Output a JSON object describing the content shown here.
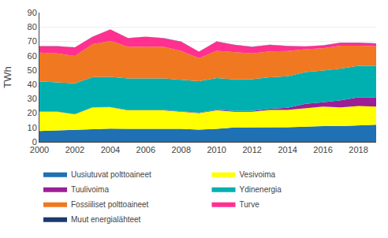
{
  "chart_data": {
    "type": "area",
    "stacked": true,
    "x": [
      2000,
      2001,
      2002,
      2003,
      2004,
      2005,
      2006,
      2007,
      2008,
      2009,
      2010,
      2011,
      2012,
      2013,
      2014,
      2015,
      2016,
      2017,
      2018,
      2019
    ],
    "series": [
      {
        "name": "Uusiutuvat polttoaineet",
        "color": "#2070B4",
        "values": [
          7.5,
          8.0,
          8.2,
          9.0,
          9.2,
          9.0,
          9.0,
          9.0,
          9.0,
          8.5,
          9.0,
          10.0,
          10.0,
          10.2,
          10.2,
          10.5,
          11.0,
          11.0,
          11.5,
          12.0
        ]
      },
      {
        "name": "Vesivoima",
        "color": "#FFFF00",
        "values": [
          13.5,
          13.0,
          11.0,
          15.0,
          15.0,
          13.0,
          13.0,
          13.0,
          12.0,
          11.5,
          13.0,
          11.0,
          11.0,
          12.0,
          12.0,
          13.0,
          13.5,
          13.0,
          13.5,
          12.5
        ]
      },
      {
        "name": "Tuulivoima",
        "color": "#9B1F97",
        "values": [
          0.1,
          0.1,
          0.1,
          0.1,
          0.1,
          0.2,
          0.2,
          0.2,
          0.2,
          0.3,
          0.4,
          0.5,
          0.6,
          0.8,
          1.5,
          3.0,
          3.1,
          5.0,
          6.0,
          6.5
        ]
      },
      {
        "name": "Ydinenergia",
        "color": "#00B0B0",
        "values": [
          21.0,
          20.5,
          21.5,
          21.0,
          21.0,
          22.0,
          22.0,
          22.0,
          22.0,
          22.0,
          22.0,
          22.0,
          22.0,
          22.0,
          22.0,
          22.0,
          22.0,
          22.0,
          22.0,
          22.0
        ]
      },
      {
        "name": "Fossiiliset polttoaineet",
        "color": "#F07820",
        "values": [
          20.0,
          20.0,
          19.0,
          23.0,
          25.0,
          22.0,
          22.0,
          22.0,
          20.0,
          16.0,
          19.0,
          19.0,
          18.0,
          18.0,
          17.5,
          16.0,
          15.5,
          16.0,
          14.0,
          13.5
        ]
      },
      {
        "name": "Turve",
        "color": "#FF3090",
        "values": [
          4.5,
          5.0,
          6.0,
          5.0,
          8.0,
          6.0,
          7.0,
          6.0,
          6.5,
          4.5,
          6.5,
          5.0,
          4.5,
          4.5,
          3.5,
          2.0,
          2.0,
          2.0,
          2.0,
          2.0
        ]
      },
      {
        "name": "Muut energialähteet",
        "color": "#1A3A6A",
        "values": [
          0.1,
          0.1,
          0.1,
          0.1,
          0.1,
          0.1,
          0.1,
          0.1,
          0.1,
          0.1,
          0.1,
          0.1,
          0.1,
          0.1,
          0.1,
          0.1,
          0.1,
          0.1,
          0.1,
          0.1
        ]
      }
    ],
    "ylabel": "TWh",
    "xlim": [
      2000,
      2019
    ],
    "xticks": [
      2000,
      2002,
      2004,
      2006,
      2008,
      2010,
      2012,
      2014,
      2016,
      2018
    ],
    "ylim": [
      0,
      90
    ],
    "yticks": [
      0,
      10,
      20,
      30,
      40,
      50,
      60,
      70,
      80,
      90
    ],
    "grid": true,
    "legend": "bottom"
  }
}
